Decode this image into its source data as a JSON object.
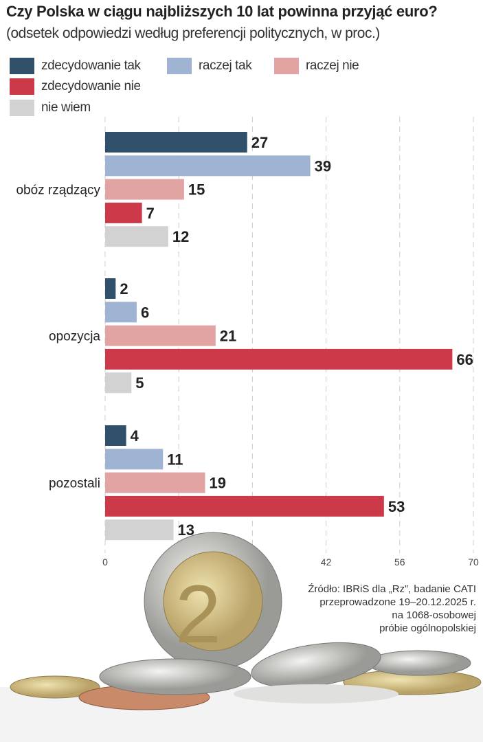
{
  "title": "Czy Polska w ciągu najbliższych 10 lat powinna przyjąć euro?",
  "subtitle": "(odsetek odpowiedzi według preferencji politycznych, w proc.)",
  "source": [
    "Źródło: IBRiS dla „Rz”, badanie CATI",
    "przeprowadzone 19–20.12.2025 r.",
    "na 1068-osobowej",
    "próbie ogólnopolskiej"
  ],
  "chart_data": {
    "type": "bar",
    "orientation": "horizontal",
    "title": "Czy Polska w ciągu najbliższych 10 lat powinna przyjąć euro?",
    "subtitle": "(odsetek odpowiedzi według preferencji politycznych, w proc.)",
    "categories": [
      "obóz rządzący",
      "opozycja",
      "pozostali"
    ],
    "series": [
      {
        "name": "zdecydowanie tak",
        "color": "#30506b",
        "values": [
          27,
          2,
          4
        ]
      },
      {
        "name": "raczej tak",
        "color": "#9fb4d2",
        "values": [
          39,
          6,
          11
        ]
      },
      {
        "name": "raczej nie",
        "color": "#e2a3a3",
        "values": [
          15,
          21,
          19
        ]
      },
      {
        "name": "zdecydowanie nie",
        "color": "#cc3a4a",
        "values": [
          7,
          66,
          53
        ]
      },
      {
        "name": "nie wiem",
        "color": "#d2d2d2",
        "values": [
          12,
          5,
          13
        ]
      }
    ],
    "xlim": [
      0,
      70
    ],
    "xticks": [
      0,
      14,
      28,
      42,
      56,
      70
    ],
    "grid": "vertical dashed",
    "legend": "top-left"
  }
}
